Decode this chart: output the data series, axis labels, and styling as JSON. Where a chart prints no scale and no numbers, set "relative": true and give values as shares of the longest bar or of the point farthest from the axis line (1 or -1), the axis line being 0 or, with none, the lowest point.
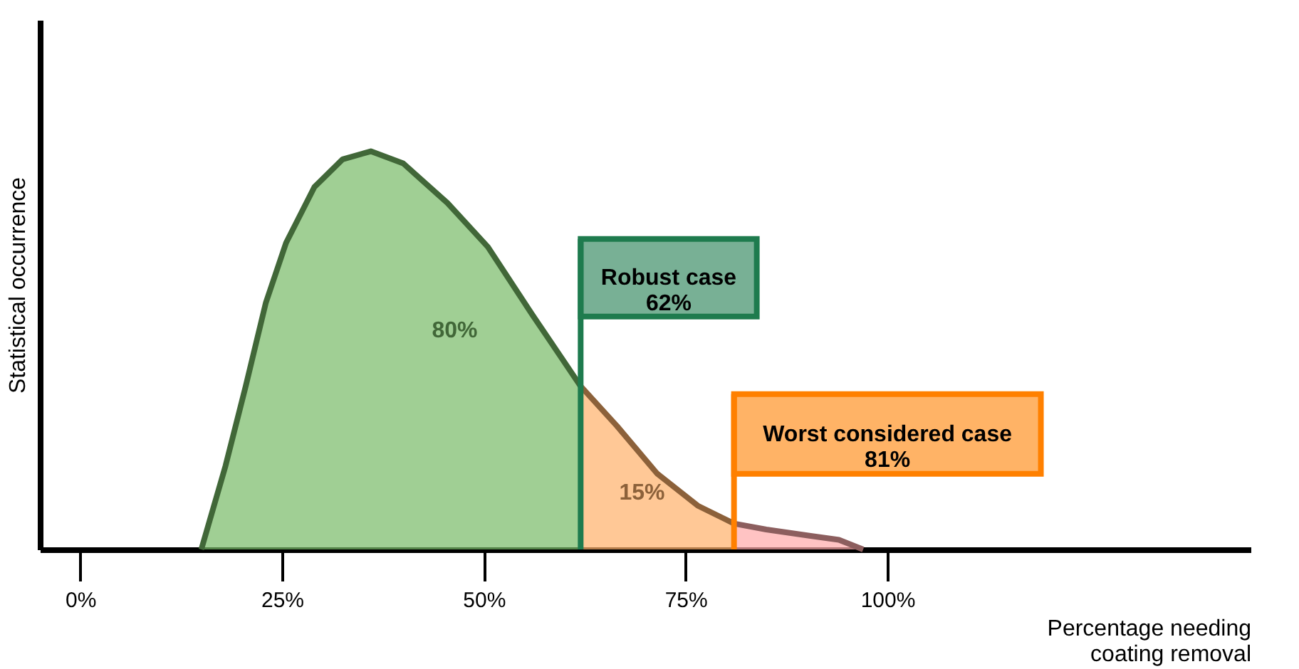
{
  "chart_data": {
    "type": "area",
    "relative": true,
    "ylabel": "Statistical occurrence",
    "xlabel": "Percentage needing coating removal",
    "xlim": [
      -5,
      145
    ],
    "xticks": [
      {
        "value": 0,
        "label": "0%"
      },
      {
        "value": 25,
        "label": "25%"
      },
      {
        "value": 50,
        "label": "50%"
      },
      {
        "value": 75,
        "label": "75%"
      },
      {
        "value": 100,
        "label": "100%"
      }
    ],
    "series": [
      {
        "color": "#77bb66",
        "x": [
          15,
          18,
          20.5,
          23,
          25.5,
          29,
          32.5,
          36,
          40,
          45.5,
          50.5,
          56,
          62
        ],
        "values": [
          0,
          0.21,
          0.41,
          0.62,
          0.77,
          0.91,
          0.98,
          1,
          0.97,
          0.87,
          0.76,
          0.59,
          0.41
        ]
      },
      {
        "color": "#ffb06a",
        "x": [
          62,
          66.5,
          71.5,
          76.5,
          81
        ],
        "values": [
          0.41,
          0.31,
          0.19,
          0.11,
          0.065
        ]
      },
      {
        "color": "#ffaaaa",
        "x": [
          81,
          85,
          90.5,
          94,
          97
        ],
        "values": [
          0.065,
          0.05,
          0.034,
          0.024,
          0
        ]
      }
    ],
    "ref_lines": [
      {
        "axis": "x",
        "value": 62,
        "label": "Robust case\n62%",
        "color": "#1e7b4e"
      },
      {
        "axis": "x",
        "value": 81,
        "label": "Worst considered case\n81%",
        "color": "#ff8000"
      }
    ],
    "annotations": [
      "80%",
      "15%"
    ]
  }
}
